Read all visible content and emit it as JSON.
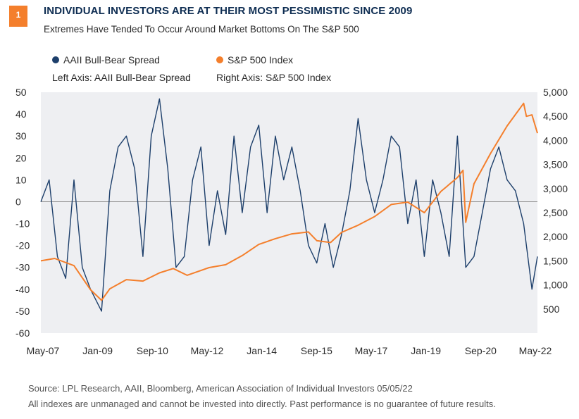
{
  "badge": "1",
  "title": "INDIVIDUAL INVESTORS ARE AT THEIR MOST PESSIMISTIC SINCE 2009",
  "subtitle": "Extremes Have Tended To Occur Around Market Bottoms On The S&P 500",
  "legend": {
    "bull_bear": "AAII Bull-Bear Spread",
    "sp500": "S&P 500 Index",
    "left_axis_note": "Left Axis: AAII Bull-Bear Spread",
    "right_axis_note": "Right Axis: S&P 500 Index"
  },
  "footer": {
    "source": "Source: LPL Research, AAII, Bloomberg, American Association of Individual Investors  05/05/22",
    "disclaimer": "All indexes are unmanaged and cannot be invested into directly. Past performance is no guarantee of future results."
  },
  "colors": {
    "bull_bear": "#1d3f6b",
    "sp500": "#f47f2c",
    "badge": "#f47f2c",
    "plot_bg": "#eeeff2",
    "zero_line": "#8a8a8a"
  },
  "chart_data": {
    "type": "line",
    "title": "INDIVIDUAL INVESTORS ARE AT THEIR MOST PESSIMISTIC SINCE 2009",
    "subtitle": "Extremes Have Tended To Occur Around Market Bottoms On The S&P 500",
    "x_range": [
      "2007-05",
      "2022-05"
    ],
    "x_ticks": [
      "May-07",
      "Jan-09",
      "Sep-10",
      "May-12",
      "Jan-14",
      "Sep-15",
      "May-17",
      "Jan-19",
      "Sep-20",
      "May-22"
    ],
    "y_left": {
      "label": "AAII Bull-Bear Spread",
      "range": [
        -60,
        50
      ],
      "ticks": [
        "50",
        "40",
        "30",
        "20",
        "10",
        "0",
        "-10",
        "-20",
        "-30",
        "-40",
        "-50",
        "-60"
      ]
    },
    "y_right": {
      "label": "S&P 500 Index",
      "range": [
        0,
        5000
      ],
      "ticks": [
        "5,000",
        "4,500",
        "4,000",
        "3,500",
        "3,000",
        "2,500",
        "2,000",
        "1,500",
        "1,000",
        "500"
      ]
    },
    "grid": false,
    "legend_position": "top-left",
    "series": [
      {
        "name": "AAII Bull-Bear Spread",
        "axis": "left",
        "x": [
          "2007-05",
          "2007-08",
          "2007-11",
          "2008-02",
          "2008-05",
          "2008-08",
          "2008-11",
          "2009-03",
          "2009-06",
          "2009-09",
          "2009-12",
          "2010-03",
          "2010-06",
          "2010-09",
          "2010-12",
          "2011-03",
          "2011-06",
          "2011-09",
          "2011-12",
          "2012-03",
          "2012-06",
          "2012-09",
          "2012-12",
          "2013-03",
          "2013-06",
          "2013-09",
          "2013-12",
          "2014-03",
          "2014-06",
          "2014-09",
          "2014-12",
          "2015-03",
          "2015-06",
          "2015-09",
          "2015-12",
          "2016-03",
          "2016-06",
          "2016-09",
          "2016-12",
          "2017-03",
          "2017-06",
          "2017-09",
          "2017-12",
          "2018-03",
          "2018-06",
          "2018-09",
          "2018-12",
          "2019-03",
          "2019-06",
          "2019-09",
          "2019-12",
          "2020-03",
          "2020-06",
          "2020-09",
          "2020-12",
          "2021-03",
          "2021-06",
          "2021-09",
          "2021-12",
          "2022-03",
          "2022-05"
        ],
        "values": [
          0,
          10,
          -25,
          -35,
          10,
          -30,
          -40,
          -50,
          5,
          25,
          30,
          15,
          -25,
          30,
          47,
          15,
          -30,
          -25,
          10,
          25,
          -20,
          5,
          -15,
          30,
          -5,
          25,
          35,
          -5,
          30,
          10,
          25,
          5,
          -20,
          -28,
          -10,
          -30,
          -15,
          5,
          38,
          10,
          -5,
          10,
          30,
          25,
          -10,
          10,
          -25,
          10,
          -5,
          -25,
          30,
          -30,
          -25,
          -5,
          15,
          25,
          10,
          5,
          -10,
          -40,
          -25
        ]
      },
      {
        "name": "S&P 500 Index",
        "axis": "right",
        "x": [
          "2007-05",
          "2007-10",
          "2008-05",
          "2008-11",
          "2009-03",
          "2009-06",
          "2009-12",
          "2010-06",
          "2010-12",
          "2011-05",
          "2011-10",
          "2012-06",
          "2012-12",
          "2013-06",
          "2013-12",
          "2014-06",
          "2014-12",
          "2015-06",
          "2015-09",
          "2016-02",
          "2016-06",
          "2016-12",
          "2017-06",
          "2017-12",
          "2018-06",
          "2018-12",
          "2019-06",
          "2019-12",
          "2020-02",
          "2020-03",
          "2020-06",
          "2020-12",
          "2021-06",
          "2021-12",
          "2022-01",
          "2022-03",
          "2022-05"
        ],
        "values": [
          1500,
          1550,
          1400,
          900,
          680,
          920,
          1110,
          1080,
          1250,
          1340,
          1200,
          1360,
          1420,
          1610,
          1840,
          1960,
          2060,
          2100,
          1920,
          1880,
          2090,
          2240,
          2420,
          2670,
          2720,
          2500,
          2940,
          3230,
          3380,
          2300,
          3100,
          3730,
          4300,
          4770,
          4500,
          4530,
          4150
        ]
      }
    ]
  }
}
